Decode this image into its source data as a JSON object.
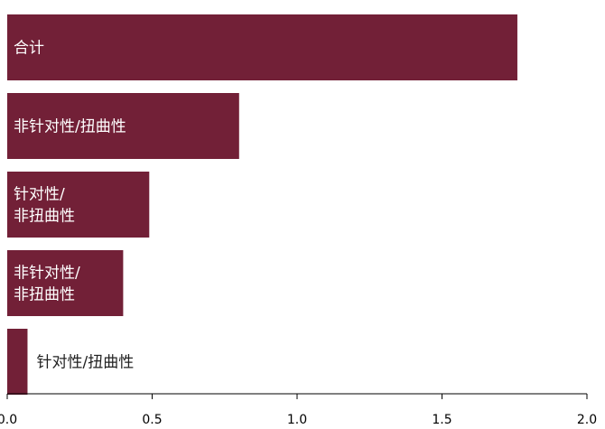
{
  "chart_data": {
    "type": "bar",
    "orientation": "horizontal",
    "categories": [
      "合计",
      "非针对性/扭曲性",
      "针对性/非扭曲性",
      "非针对性/非扭曲性",
      "针对性/扭曲性"
    ],
    "category_display_lines": [
      [
        "合计"
      ],
      [
        "非针对性/扭曲性"
      ],
      [
        "针对性/",
        "非扭曲性"
      ],
      [
        "非针对性/",
        "非扭曲性"
      ],
      [
        "针对性/扭曲性"
      ]
    ],
    "values": [
      1.76,
      0.8,
      0.49,
      0.4,
      0.07
    ],
    "xlim": [
      0,
      2.0
    ],
    "xticks": [
      "0.0",
      "0.5",
      "1.0",
      "1.5",
      "2.0"
    ],
    "title": "",
    "xlabel": "",
    "ylabel": "",
    "grid": false,
    "bar_color": "#722037",
    "label_color_inside": "#ffffff",
    "label_color_outside": "#222222"
  }
}
